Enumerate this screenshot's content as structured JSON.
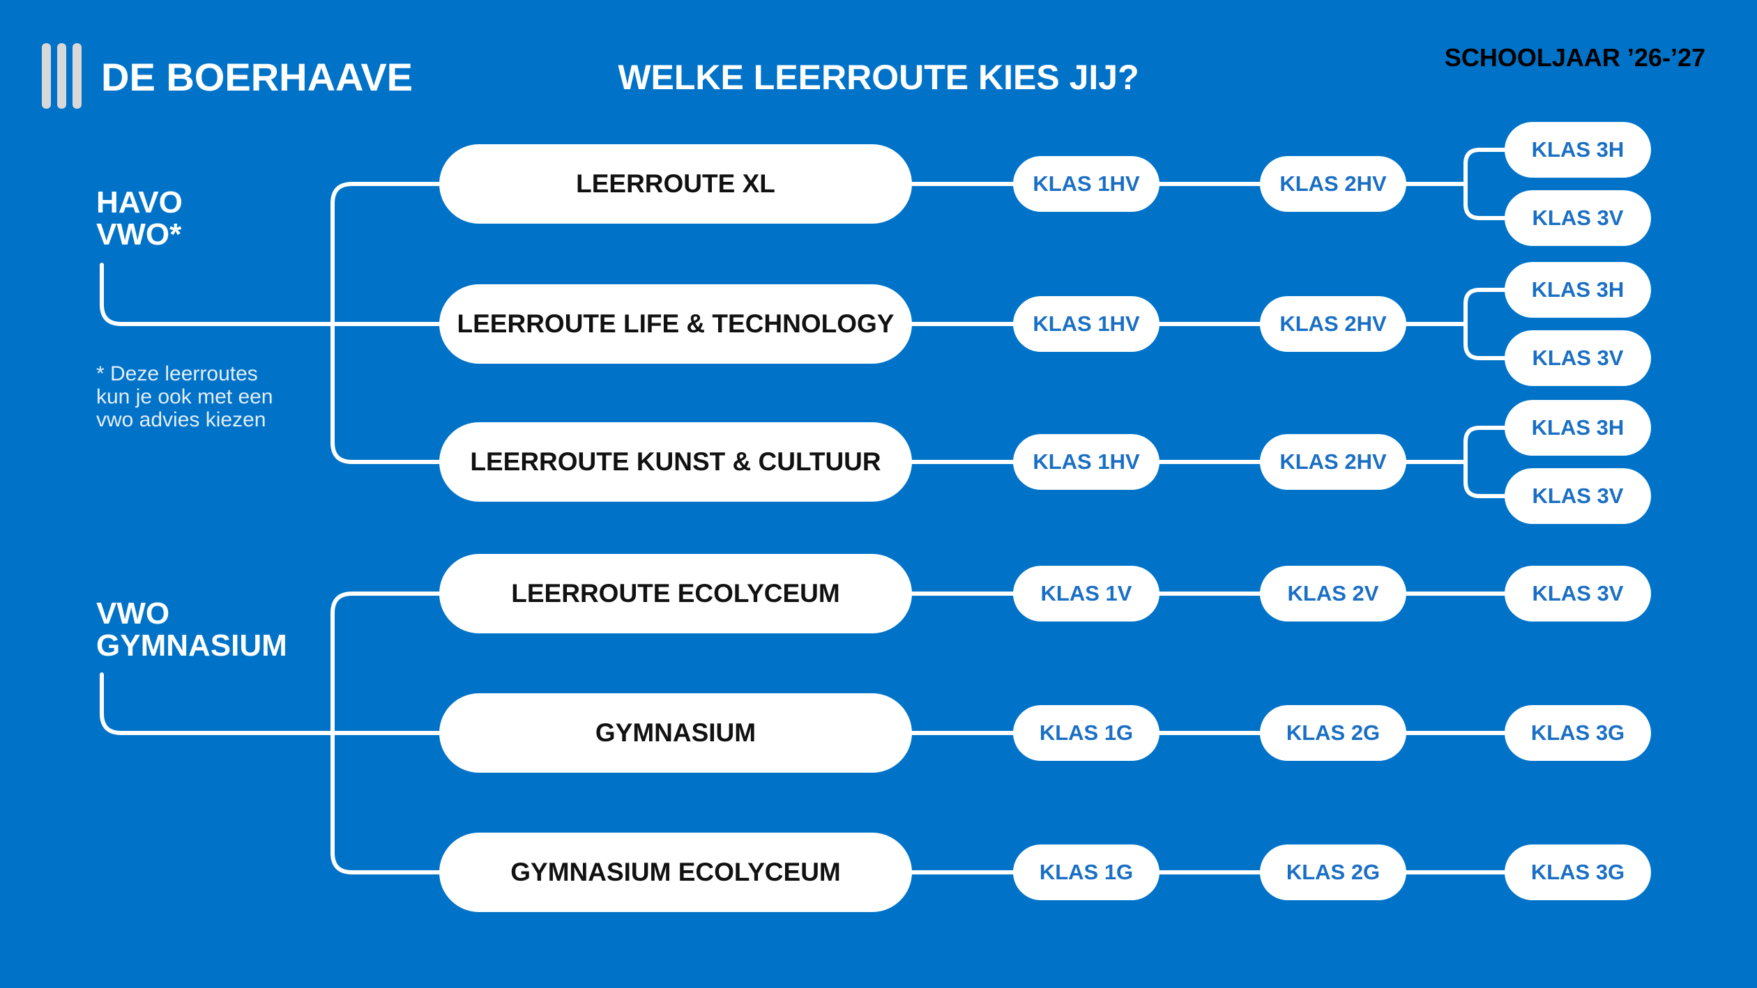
{
  "header": {
    "logo_text": "DE BOERHAAVE",
    "title": "WELKE LEERROUTE KIES JIJ?",
    "year": "SCHOOLJAAR ’26-’27"
  },
  "colors": {
    "background": "#0073c8",
    "pill": "#ffffff",
    "klas_text": "#1a6fc4",
    "route_text": "#111111",
    "connector": "#ffffff"
  },
  "groups": [
    {
      "label": "HAVO\nVWO*",
      "footnote": "* Deze leerroutes\n   kun je ook met een\n   vwo advies kiezen",
      "routes": [
        {
          "name": "LEERROUTE XL",
          "klas1": "KLAS 1HV",
          "klas2": "KLAS 2HV",
          "klas3": [
            "KLAS 3H",
            "KLAS 3V"
          ]
        },
        {
          "name": "LEERROUTE LIFE & TECHNOLOGY",
          "klas1": "KLAS 1HV",
          "klas2": "KLAS 2HV",
          "klas3": [
            "KLAS 3H",
            "KLAS 3V"
          ]
        },
        {
          "name": "LEERROUTE KUNST & CULTUUR",
          "klas1": "KLAS 1HV",
          "klas2": "KLAS 2HV",
          "klas3": [
            "KLAS 3H",
            "KLAS 3V"
          ]
        }
      ]
    },
    {
      "label": "VWO\nGYMNASIUM",
      "routes": [
        {
          "name": "LEERROUTE ECOLYCEUM",
          "klas1": "KLAS 1V",
          "klas2": "KLAS 2V",
          "klas3": [
            "KLAS 3V"
          ]
        },
        {
          "name": "GYMNASIUM",
          "klas1": "KLAS 1G",
          "klas2": "KLAS 2G",
          "klas3": [
            "KLAS 3G"
          ]
        },
        {
          "name": "GYMNASIUM ECOLYCEUM",
          "klas1": "KLAS 1G",
          "klas2": "KLAS 2G",
          "klas3": [
            "KLAS 3G"
          ]
        }
      ]
    }
  ]
}
